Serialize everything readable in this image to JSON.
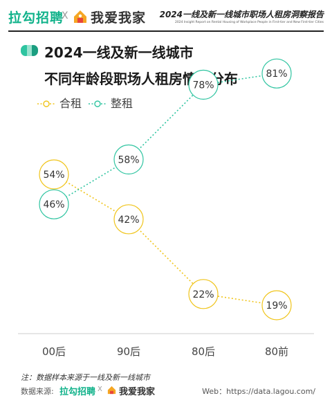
{
  "header": {
    "brand_lagou": "拉勾招聘",
    "separator": "X",
    "brand_woai": "我爱我家",
    "report_title": "2024一线及新一线城市职场人租房洞察报告",
    "report_subtitle": "2024 Insight Report on Rental Housing of Workplace People in First-tier and New First-tier Cities"
  },
  "title": {
    "line1": "2024一线及新一线城市",
    "line2": "不同年龄段职场人租房情况分布"
  },
  "colors": {
    "hezu": "#f0c419",
    "zhengzu": "#2ec4a0",
    "brand_green": "#10b28a",
    "axis": "#cccccc"
  },
  "chart_data": {
    "type": "line",
    "categories": [
      "00后",
      "90后",
      "80后",
      "80前"
    ],
    "series": [
      {
        "name": "合租",
        "values": [
          54,
          42,
          22,
          19
        ],
        "labels": [
          "54%",
          "42%",
          "22%",
          "19%"
        ],
        "color": "#f0c419"
      },
      {
        "name": "整租",
        "values": [
          46,
          58,
          78,
          81
        ],
        "labels": [
          "46%",
          "58%",
          "78%",
          "81%"
        ],
        "color": "#2ec4a0"
      }
    ],
    "unit": "%",
    "legend_position": "top-left",
    "grid": false
  },
  "footer": {
    "note": "注：数据样本来源于一线及新一线城市",
    "source_label": "数据来源:",
    "source_lagou": "拉勾招聘",
    "source_separator": "X",
    "source_woai": "我爱我家",
    "web": "Web：https://data.lagou.com/"
  }
}
